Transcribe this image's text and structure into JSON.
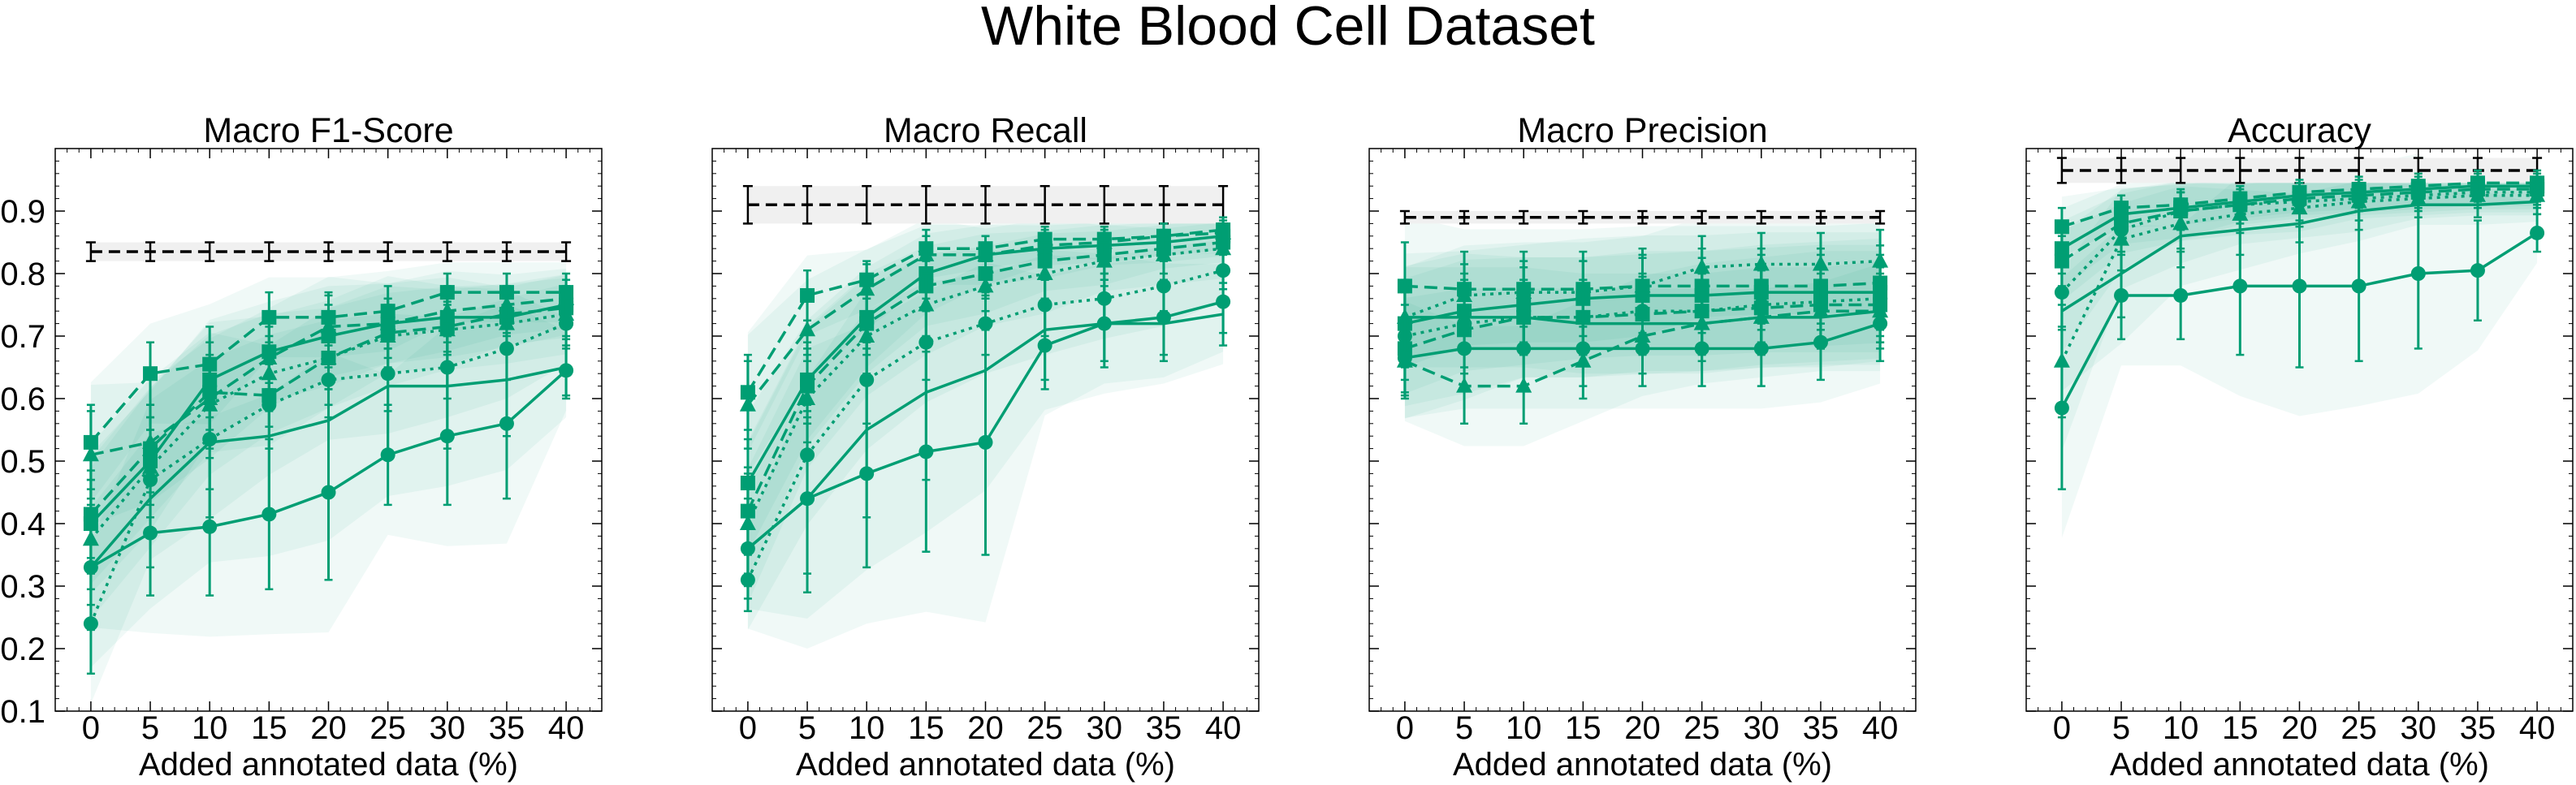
{
  "figure": {
    "title": "White Blood Cell Dataset"
  },
  "colors": {
    "series": "#009e73",
    "reference": "#000000",
    "reference_band": "#f0f0f0"
  },
  "chart_data": [
    {
      "type": "line",
      "title": "Macro F1-Score",
      "xlabel": "Added annotated data (%)",
      "ylabel": "",
      "x": [
        0,
        5,
        10,
        15,
        20,
        25,
        30,
        35,
        40
      ],
      "xlim": [
        -3,
        43
      ],
      "ylim": [
        0.1,
        1.0
      ],
      "yticks": [
        0.1,
        0.2,
        0.3,
        0.4,
        0.5,
        0.6,
        0.7,
        0.8,
        0.9
      ],
      "show_yticklabels": true,
      "reference": {
        "value": 0.835,
        "err": 0.015
      },
      "series": [
        {
          "marker": "square",
          "dash": "dashed",
          "values": [
            0.53,
            0.64,
            0.655,
            0.73,
            0.73,
            0.74,
            0.77,
            0.77,
            0.77
          ],
          "err": [
            0.06,
            0.05,
            0.06,
            0.04,
            0.04,
            0.04,
            0.03,
            0.03,
            0.03
          ]
        },
        {
          "marker": "triangle",
          "dash": "dashed",
          "values": [
            0.51,
            0.53,
            0.6,
            0.665,
            0.715,
            0.72,
            0.74,
            0.75,
            0.76
          ],
          "err": [
            0.07,
            0.06,
            0.06,
            0.05,
            0.05,
            0.04,
            0.04,
            0.03,
            0.03
          ]
        },
        {
          "marker": "square",
          "dash": "dashed",
          "values": [
            0.415,
            0.52,
            0.61,
            0.605,
            0.665,
            0.705,
            0.715,
            0.735,
            0.745
          ],
          "err": [
            0.07,
            0.07,
            0.06,
            0.05,
            0.05,
            0.04,
            0.04,
            0.03,
            0.03
          ]
        },
        {
          "marker": "square",
          "dash": "solid",
          "values": [
            0.4,
            0.5,
            0.63,
            0.675,
            0.7,
            0.72,
            0.73,
            0.73,
            0.75
          ],
          "err": [
            0.07,
            0.07,
            0.06,
            0.05,
            0.05,
            0.04,
            0.04,
            0.03,
            0.03
          ]
        },
        {
          "marker": "triangle",
          "dash": "dotted",
          "values": [
            0.375,
            0.49,
            0.59,
            0.64,
            0.665,
            0.7,
            0.71,
            0.72,
            0.735
          ],
          "err": [
            0.08,
            0.08,
            0.07,
            0.06,
            0.05,
            0.05,
            0.04,
            0.04,
            0.04
          ]
        },
        {
          "marker": "circle",
          "dash": "dotted",
          "values": [
            0.24,
            0.47,
            0.535,
            0.59,
            0.63,
            0.64,
            0.65,
            0.68,
            0.72
          ],
          "err": [
            0.08,
            0.08,
            0.08,
            0.07,
            0.06,
            0.06,
            0.05,
            0.05,
            0.04
          ]
        },
        {
          "marker": "none",
          "dash": "solid",
          "values": [
            0.33,
            0.44,
            0.53,
            0.54,
            0.565,
            0.62,
            0.62,
            0.63,
            0.65
          ],
          "err": [
            0.1,
            0.11,
            0.12,
            0.12,
            0.12,
            0.11,
            0.1,
            0.09,
            0.05
          ]
        },
        {
          "marker": "circle",
          "dash": "solid",
          "values": [
            0.33,
            0.385,
            0.395,
            0.415,
            0.45,
            0.51,
            0.54,
            0.56,
            0.645
          ],
          "err": [
            0.06,
            0.1,
            0.11,
            0.12,
            0.14,
            0.08,
            0.11,
            0.12,
            0.04
          ]
        }
      ]
    },
    {
      "type": "line",
      "title": "Macro Recall",
      "xlabel": "Added annotated data (%)",
      "ylabel": "",
      "x": [
        0,
        5,
        10,
        15,
        20,
        25,
        30,
        35,
        40
      ],
      "xlim": [
        -3,
        43
      ],
      "ylim": [
        0.1,
        1.0
      ],
      "yticks": [
        0.1,
        0.2,
        0.3,
        0.4,
        0.5,
        0.6,
        0.7,
        0.8,
        0.9
      ],
      "show_yticklabels": false,
      "reference": {
        "value": 0.91,
        "err": 0.03
      },
      "series": [
        {
          "marker": "square",
          "dash": "dashed",
          "values": [
            0.61,
            0.765,
            0.79,
            0.84,
            0.84,
            0.855,
            0.855,
            0.86,
            0.87
          ],
          "err": [
            0.06,
            0.04,
            0.03,
            0.03,
            0.02,
            0.02,
            0.02,
            0.02,
            0.02
          ]
        },
        {
          "marker": "triangle",
          "dash": "dashed",
          "values": [
            0.59,
            0.71,
            0.775,
            0.83,
            0.83,
            0.845,
            0.85,
            0.86,
            0.865
          ],
          "err": [
            0.07,
            0.05,
            0.04,
            0.03,
            0.03,
            0.02,
            0.02,
            0.02,
            0.02
          ]
        },
        {
          "marker": "square",
          "dash": "solid",
          "values": [
            0.465,
            0.63,
            0.73,
            0.8,
            0.83,
            0.84,
            0.845,
            0.85,
            0.86
          ],
          "err": [
            0.07,
            0.06,
            0.05,
            0.04,
            0.03,
            0.03,
            0.02,
            0.02,
            0.02
          ]
        },
        {
          "marker": "square",
          "dash": "dashed",
          "values": [
            0.42,
            0.62,
            0.72,
            0.78,
            0.8,
            0.82,
            0.83,
            0.84,
            0.85
          ],
          "err": [
            0.07,
            0.06,
            0.05,
            0.04,
            0.04,
            0.03,
            0.03,
            0.02,
            0.02
          ]
        },
        {
          "marker": "triangle",
          "dash": "dotted",
          "values": [
            0.4,
            0.6,
            0.7,
            0.75,
            0.78,
            0.8,
            0.82,
            0.83,
            0.84
          ],
          "err": [
            0.08,
            0.07,
            0.06,
            0.05,
            0.04,
            0.04,
            0.03,
            0.03,
            0.03
          ]
        },
        {
          "marker": "circle",
          "dash": "dotted",
          "values": [
            0.31,
            0.51,
            0.63,
            0.69,
            0.72,
            0.75,
            0.76,
            0.78,
            0.805
          ],
          "err": [
            0.05,
            0.07,
            0.07,
            0.06,
            0.05,
            0.05,
            0.04,
            0.04,
            0.03
          ]
        },
        {
          "marker": "none",
          "dash": "solid",
          "values": [
            0.36,
            0.44,
            0.55,
            0.61,
            0.645,
            0.71,
            0.72,
            0.72,
            0.735
          ],
          "err": [
            0.06,
            0.12,
            0.14,
            0.14,
            0.12,
            0.08,
            0.07,
            0.06,
            0.05
          ]
        },
        {
          "marker": "circle",
          "dash": "solid",
          "values": [
            0.36,
            0.44,
            0.48,
            0.515,
            0.53,
            0.685,
            0.72,
            0.73,
            0.755
          ],
          "err": [
            0.08,
            0.15,
            0.15,
            0.16,
            0.18,
            0.07,
            0.06,
            0.06,
            0.05
          ]
        }
      ]
    },
    {
      "type": "line",
      "title": "Macro Precision",
      "xlabel": "Added annotated data (%)",
      "ylabel": "",
      "x": [
        0,
        5,
        10,
        15,
        20,
        25,
        30,
        35,
        40
      ],
      "xlim": [
        -3,
        43
      ],
      "ylim": [
        0.1,
        1.0
      ],
      "yticks": [
        0.1,
        0.2,
        0.3,
        0.4,
        0.5,
        0.6,
        0.7,
        0.8,
        0.9
      ],
      "show_yticklabels": false,
      "reference": {
        "value": 0.89,
        "err": 0.01
      },
      "series": [
        {
          "marker": "triangle",
          "dash": "dotted",
          "values": [
            0.73,
            0.765,
            0.77,
            0.77,
            0.78,
            0.81,
            0.815,
            0.815,
            0.82
          ],
          "err": [
            0.05,
            0.05,
            0.05,
            0.05,
            0.05,
            0.05,
            0.05,
            0.05,
            0.05
          ]
        },
        {
          "marker": "square",
          "dash": "dashed",
          "values": [
            0.78,
            0.775,
            0.775,
            0.775,
            0.78,
            0.78,
            0.78,
            0.78,
            0.785
          ],
          "err": [
            0.07,
            0.06,
            0.06,
            0.06,
            0.06,
            0.06,
            0.06,
            0.06,
            0.06
          ]
        },
        {
          "marker": "square",
          "dash": "solid",
          "values": [
            0.72,
            0.74,
            0.75,
            0.76,
            0.765,
            0.765,
            0.77,
            0.77,
            0.77
          ],
          "err": [
            0.07,
            0.06,
            0.06,
            0.06,
            0.06,
            0.06,
            0.06,
            0.06,
            0.06
          ]
        },
        {
          "marker": "circle",
          "dash": "dotted",
          "values": [
            0.7,
            0.72,
            0.73,
            0.73,
            0.74,
            0.74,
            0.75,
            0.755,
            0.76
          ],
          "err": [
            0.07,
            0.07,
            0.06,
            0.06,
            0.06,
            0.06,
            0.06,
            0.06,
            0.06
          ]
        },
        {
          "marker": "square",
          "dash": "dashed",
          "values": [
            0.68,
            0.71,
            0.73,
            0.73,
            0.735,
            0.74,
            0.745,
            0.75,
            0.75
          ],
          "err": [
            0.07,
            0.07,
            0.06,
            0.06,
            0.06,
            0.06,
            0.06,
            0.06,
            0.06
          ]
        },
        {
          "marker": "triangle",
          "dash": "dashed",
          "values": [
            0.66,
            0.62,
            0.62,
            0.66,
            0.7,
            0.72,
            0.73,
            0.74,
            0.74
          ],
          "err": [
            0.06,
            0.06,
            0.06,
            0.06,
            0.06,
            0.06,
            0.06,
            0.06,
            0.06
          ]
        },
        {
          "marker": "none",
          "dash": "solid",
          "values": [
            0.73,
            0.73,
            0.73,
            0.72,
            0.72,
            0.72,
            0.73,
            0.73,
            0.74
          ],
          "err": [
            0.05,
            0.05,
            0.05,
            0.05,
            0.05,
            0.05,
            0.05,
            0.05,
            0.05
          ]
        },
        {
          "marker": "circle",
          "dash": "solid",
          "values": [
            0.665,
            0.68,
            0.68,
            0.68,
            0.68,
            0.68,
            0.68,
            0.69,
            0.72
          ],
          "err": [
            0.06,
            0.06,
            0.06,
            0.06,
            0.06,
            0.06,
            0.06,
            0.06,
            0.06
          ]
        }
      ]
    },
    {
      "type": "line",
      "title": "Accuracy",
      "xlabel": "Added annotated data (%)",
      "ylabel": "",
      "x": [
        0,
        5,
        10,
        15,
        20,
        25,
        30,
        35,
        40
      ],
      "xlim": [
        -3,
        43
      ],
      "ylim": [
        0.1,
        1.0
      ],
      "yticks": [
        0.1,
        0.2,
        0.3,
        0.4,
        0.5,
        0.6,
        0.7,
        0.8,
        0.9
      ],
      "show_yticklabels": false,
      "reference": {
        "value": 0.965,
        "err": 0.02
      },
      "series": [
        {
          "marker": "square",
          "dash": "dashed",
          "values": [
            0.875,
            0.905,
            0.91,
            0.92,
            0.93,
            0.935,
            0.94,
            0.945,
            0.945
          ],
          "err": [
            0.03,
            0.02,
            0.02,
            0.02,
            0.02,
            0.02,
            0.02,
            0.02,
            0.02
          ]
        },
        {
          "marker": "square",
          "dash": "solid",
          "values": [
            0.84,
            0.895,
            0.905,
            0.915,
            0.925,
            0.93,
            0.935,
            0.94,
            0.94
          ],
          "err": [
            0.04,
            0.03,
            0.03,
            0.02,
            0.02,
            0.02,
            0.02,
            0.02,
            0.02
          ]
        },
        {
          "marker": "square",
          "dash": "dashed",
          "values": [
            0.82,
            0.88,
            0.9,
            0.91,
            0.92,
            0.925,
            0.93,
            0.935,
            0.935
          ],
          "err": [
            0.04,
            0.03,
            0.03,
            0.02,
            0.02,
            0.02,
            0.02,
            0.02,
            0.02
          ]
        },
        {
          "marker": "circle",
          "dash": "dotted",
          "values": [
            0.77,
            0.87,
            0.9,
            0.91,
            0.915,
            0.92,
            0.925,
            0.93,
            0.93
          ],
          "err": [
            0.06,
            0.04,
            0.03,
            0.03,
            0.03,
            0.02,
            0.02,
            0.02,
            0.02
          ]
        },
        {
          "marker": "none",
          "dash": "solid",
          "values": [
            0.74,
            0.8,
            0.86,
            0.87,
            0.88,
            0.9,
            0.91,
            0.91,
            0.915
          ],
          "err": [
            0.08,
            0.07,
            0.05,
            0.04,
            0.03,
            0.03,
            0.02,
            0.02,
            0.02
          ]
        },
        {
          "marker": "triangle",
          "dash": "dotted",
          "values": [
            0.66,
            0.855,
            0.88,
            0.895,
            0.905,
            0.915,
            0.92,
            0.925,
            0.925
          ],
          "err": [
            0.09,
            0.05,
            0.04,
            0.03,
            0.03,
            0.03,
            0.02,
            0.02,
            0.02
          ]
        },
        {
          "marker": "circle",
          "dash": "solid",
          "values": [
            0.585,
            0.765,
            0.765,
            0.78,
            0.78,
            0.78,
            0.8,
            0.805,
            0.865
          ],
          "err": [
            0.13,
            0.07,
            0.07,
            0.11,
            0.13,
            0.12,
            0.12,
            0.08,
            0.03
          ]
        }
      ]
    }
  ]
}
